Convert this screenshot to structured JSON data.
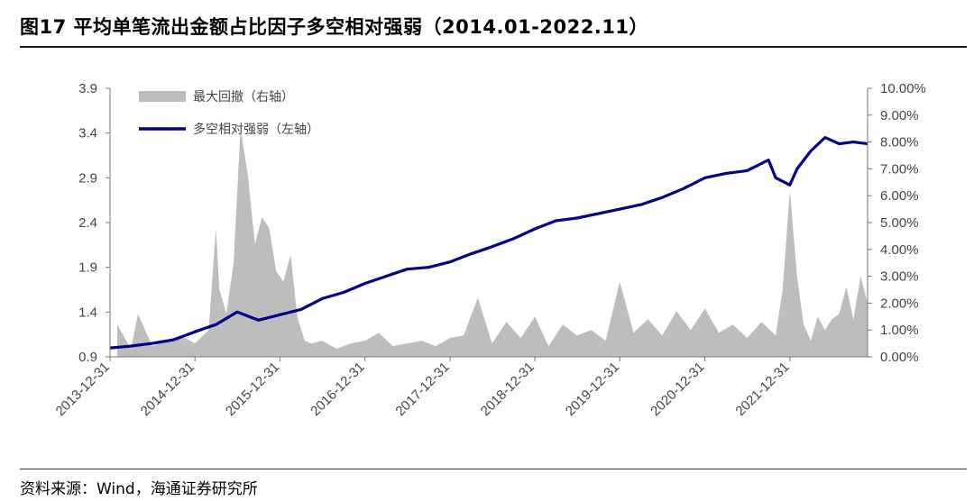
{
  "header": {
    "title": "图17 平均单笔流出金额占比因子多空相对强弱（2014.01-2022.11）"
  },
  "footer": {
    "source": "资料来源：Wind，海通证券研究所"
  },
  "chart_data": {
    "type": "area+line",
    "title": "图17 平均单笔流出金额占比因子多空相对强弱（2014.01-2022.11）",
    "x_range": [
      "2013-12-31",
      "2022-11-30"
    ],
    "x_tick_labels": [
      "2013-12-31",
      "2014-12-31",
      "2015-12-31",
      "2016-12-31",
      "2017-12-31",
      "2018-12-31",
      "2019-12-31",
      "2020-12-31",
      "2021-12-31"
    ],
    "y_left": {
      "min": 0.9,
      "max": 3.9,
      "ticks": [
        3.9,
        3.4,
        2.9,
        2.4,
        1.9,
        1.4,
        0.9
      ],
      "tick_labels": [
        "3.9",
        "3.4",
        "2.9",
        "2.4",
        "1.9",
        "1.4",
        "0.9"
      ]
    },
    "y_right": {
      "min": 0,
      "max": 10,
      "ticks": [
        10,
        9,
        8,
        7,
        6,
        5,
        4,
        3,
        2,
        1,
        0
      ],
      "tick_labels": [
        "10.00%",
        "9.00%",
        "8.00%",
        "7.00%",
        "6.00%",
        "5.00%",
        "4.00%",
        "3.00%",
        "2.00%",
        "1.00%",
        "0.00%"
      ]
    },
    "legend": {
      "placement": "top-left"
    },
    "colors": {
      "drawdown": "#bdbdbd",
      "strength": "#00008b"
    },
    "series": [
      {
        "name": "最大回撤（右轴）",
        "type": "area",
        "axis": "right",
        "x": [
          "2014-01-31",
          "2014-03-31",
          "2014-04-30",
          "2014-06-30",
          "2014-08-31",
          "2014-10-31",
          "2014-12-31",
          "2015-02-28",
          "2015-03-31",
          "2015-04-15",
          "2015-05-15",
          "2015-06-15",
          "2015-07-15",
          "2015-08-15",
          "2015-09-15",
          "2015-10-15",
          "2015-11-15",
          "2015-12-15",
          "2016-01-15",
          "2016-02-15",
          "2016-03-15",
          "2016-04-15",
          "2016-05-15",
          "2016-06-30",
          "2016-08-31",
          "2016-10-31",
          "2016-12-31",
          "2017-02-28",
          "2017-04-30",
          "2017-06-30",
          "2017-08-31",
          "2017-10-31",
          "2017-12-31",
          "2018-02-28",
          "2018-04-30",
          "2018-06-30",
          "2018-08-31",
          "2018-10-31",
          "2018-12-31",
          "2019-02-28",
          "2019-04-30",
          "2019-06-30",
          "2019-08-31",
          "2019-10-31",
          "2019-12-31",
          "2020-02-28",
          "2020-04-30",
          "2020-06-30",
          "2020-08-31",
          "2020-10-31",
          "2020-12-31",
          "2021-02-28",
          "2021-04-30",
          "2021-06-30",
          "2021-08-31",
          "2021-10-31",
          "2021-11-30",
          "2021-12-31",
          "2022-01-31",
          "2022-02-28",
          "2022-03-31",
          "2022-04-30",
          "2022-05-31",
          "2022-06-30",
          "2022-07-31",
          "2022-08-31",
          "2022-09-30",
          "2022-10-31",
          "2022-11-30"
        ],
        "values": [
          1.2,
          0.3,
          1.6,
          0.4,
          0.6,
          0.8,
          0.5,
          1.0,
          4.8,
          2.5,
          1.6,
          3.5,
          8.5,
          6.8,
          4.2,
          5.2,
          4.8,
          3.2,
          2.8,
          3.8,
          1.5,
          0.6,
          0.5,
          0.6,
          0.3,
          0.5,
          0.6,
          0.9,
          0.4,
          0.5,
          0.6,
          0.4,
          0.7,
          0.8,
          2.2,
          0.5,
          1.3,
          0.7,
          1.5,
          0.4,
          1.2,
          0.8,
          1.0,
          0.6,
          2.8,
          0.9,
          1.4,
          0.8,
          1.7,
          1.0,
          1.8,
          0.9,
          1.2,
          0.7,
          1.3,
          0.8,
          2.5,
          6.2,
          3.0,
          1.2,
          0.6,
          1.5,
          1.0,
          1.4,
          1.6,
          2.6,
          1.4,
          3.0,
          2.0
        ]
      },
      {
        "name": "多空相对强弱（左轴）",
        "type": "line",
        "axis": "left",
        "x": [
          "2013-12-31",
          "2014-03-31",
          "2014-06-30",
          "2014-09-30",
          "2014-12-31",
          "2015-03-31",
          "2015-06-30",
          "2015-09-30",
          "2015-12-31",
          "2016-03-31",
          "2016-06-30",
          "2016-09-30",
          "2016-12-31",
          "2017-03-31",
          "2017-06-30",
          "2017-09-30",
          "2017-12-31",
          "2018-03-31",
          "2018-06-30",
          "2018-09-30",
          "2018-12-31",
          "2019-03-31",
          "2019-06-30",
          "2019-09-30",
          "2019-12-31",
          "2020-03-31",
          "2020-06-30",
          "2020-09-30",
          "2020-12-31",
          "2021-03-31",
          "2021-06-30",
          "2021-09-30",
          "2021-10-31",
          "2021-12-31",
          "2022-01-31",
          "2022-03-31",
          "2022-05-31",
          "2022-07-31",
          "2022-09-30",
          "2022-11-30"
        ],
        "values": [
          1.0,
          1.02,
          1.05,
          1.09,
          1.18,
          1.26,
          1.4,
          1.31,
          1.37,
          1.43,
          1.55,
          1.62,
          1.72,
          1.8,
          1.88,
          1.9,
          1.96,
          2.05,
          2.13,
          2.22,
          2.33,
          2.42,
          2.45,
          2.5,
          2.55,
          2.6,
          2.68,
          2.78,
          2.9,
          2.95,
          2.98,
          3.1,
          2.9,
          2.82,
          3.0,
          3.2,
          3.35,
          3.28,
          3.3,
          3.28
        ]
      }
    ]
  }
}
